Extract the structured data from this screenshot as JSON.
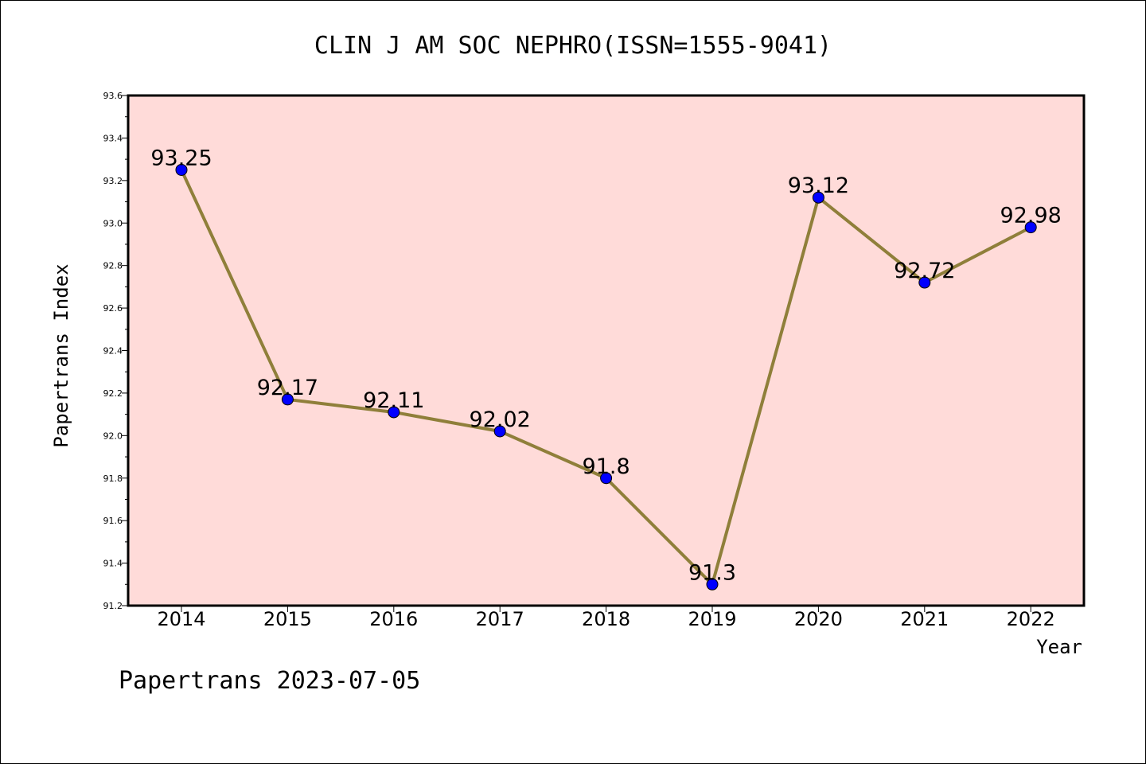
{
  "chart_data": {
    "type": "line",
    "title": "CLIN J AM SOC NEPHRO(ISSN=1555-9041)",
    "xlabel": "Year",
    "ylabel": "Papertrans Index",
    "categories": [
      "2014",
      "2015",
      "2016",
      "2017",
      "2018",
      "2019",
      "2020",
      "2021",
      "2022"
    ],
    "series": [
      {
        "values": [
          93.25,
          92.17,
          92.11,
          92.02,
          91.8,
          91.3,
          93.12,
          92.72,
          92.98
        ],
        "labels": [
          "93.25",
          "92.17",
          "92.11",
          "92.02",
          "91.8",
          "91.3",
          "93.12",
          "92.72",
          "92.98"
        ]
      }
    ],
    "ylim": [
      91.2,
      93.6
    ],
    "yticks": [
      "91.2",
      "91.4",
      "91.6",
      "91.8",
      "92.0",
      "92.2",
      "92.4",
      "92.6",
      "92.8",
      "93.0",
      "93.2",
      "93.4",
      "93.6"
    ],
    "grid": false,
    "colors": {
      "plot_background": "#FFDBD9",
      "line": "#8F7F3A",
      "marker": "#0000FF"
    }
  },
  "footer": {
    "text": "Papertrans 2023-07-05"
  }
}
